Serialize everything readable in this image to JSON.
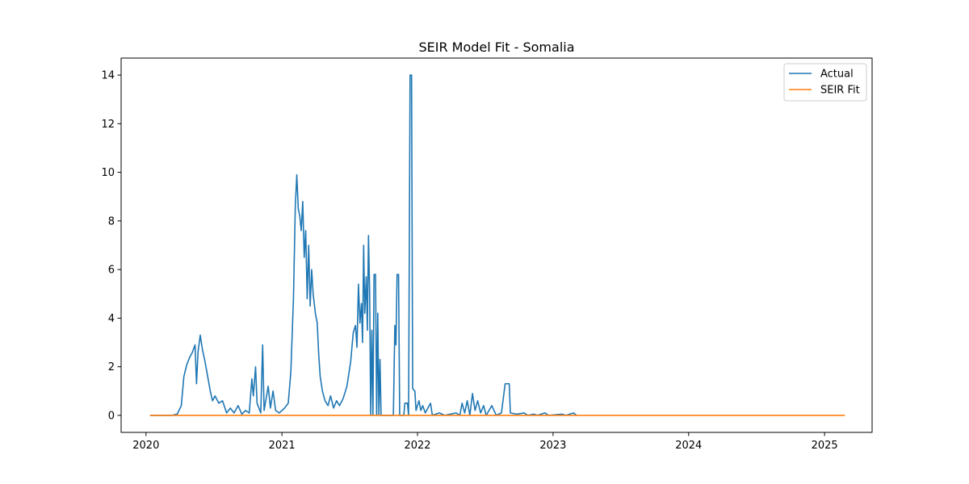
{
  "chart_data": {
    "type": "line",
    "title": "SEIR Model Fit - Somalia",
    "xlabel": "",
    "ylabel": "",
    "x_axis": "date",
    "xlim": [
      "2019-10-26",
      "2025-05-09"
    ],
    "ylim": [
      -0.7,
      14.7
    ],
    "x_ticks": [
      "2020-01-01",
      "2021-01-01",
      "2022-01-01",
      "2023-01-01",
      "2024-01-01",
      "2025-01-01"
    ],
    "x_tick_labels": [
      "2020",
      "2021",
      "2022",
      "2023",
      "2024",
      "2025"
    ],
    "y_ticks": [
      0,
      2,
      4,
      6,
      8,
      10,
      12,
      14
    ],
    "y_tick_labels": [
      "0",
      "2",
      "4",
      "6",
      "8",
      "10",
      "12",
      "14"
    ],
    "grid": false,
    "legend_position": "top-right",
    "series": [
      {
        "name": "Actual",
        "color": "#1f77b4",
        "points": [
          [
            "2020-01-12",
            0
          ],
          [
            "2020-03-10",
            0
          ],
          [
            "2020-03-25",
            0.05
          ],
          [
            "2020-04-05",
            0.4
          ],
          [
            "2020-04-12",
            1.6
          ],
          [
            "2020-04-20",
            2.1
          ],
          [
            "2020-04-28",
            2.4
          ],
          [
            "2020-05-05",
            2.6
          ],
          [
            "2020-05-12",
            2.9
          ],
          [
            "2020-05-16",
            1.3
          ],
          [
            "2020-05-20",
            2.6
          ],
          [
            "2020-05-26",
            3.3
          ],
          [
            "2020-06-01",
            2.7
          ],
          [
            "2020-06-08",
            2.2
          ],
          [
            "2020-06-15",
            1.6
          ],
          [
            "2020-06-22",
            1.0
          ],
          [
            "2020-06-28",
            0.6
          ],
          [
            "2020-07-05",
            0.8
          ],
          [
            "2020-07-15",
            0.5
          ],
          [
            "2020-07-25",
            0.6
          ],
          [
            "2020-08-05",
            0.1
          ],
          [
            "2020-08-15",
            0.3
          ],
          [
            "2020-08-25",
            0.1
          ],
          [
            "2020-09-05",
            0.4
          ],
          [
            "2020-09-15",
            0.05
          ],
          [
            "2020-09-25",
            0.2
          ],
          [
            "2020-10-05",
            0.1
          ],
          [
            "2020-10-12",
            1.5
          ],
          [
            "2020-10-16",
            0.8
          ],
          [
            "2020-10-22",
            2.0
          ],
          [
            "2020-10-26",
            0.5
          ],
          [
            "2020-11-05",
            0.1
          ],
          [
            "2020-11-10",
            2.9
          ],
          [
            "2020-11-14",
            0.2
          ],
          [
            "2020-11-25",
            1.2
          ],
          [
            "2020-12-01",
            0.3
          ],
          [
            "2020-12-08",
            1.0
          ],
          [
            "2020-12-15",
            0.2
          ],
          [
            "2020-12-25",
            0.1
          ],
          [
            "2021-01-08",
            0.3
          ],
          [
            "2021-01-18",
            0.5
          ],
          [
            "2021-01-25",
            1.8
          ],
          [
            "2021-02-01",
            4.8
          ],
          [
            "2021-02-06",
            8.6
          ],
          [
            "2021-02-10",
            9.9
          ],
          [
            "2021-02-14",
            8.5
          ],
          [
            "2021-02-18",
            8.2
          ],
          [
            "2021-02-22",
            7.6
          ],
          [
            "2021-02-26",
            8.8
          ],
          [
            "2021-03-02",
            6.5
          ],
          [
            "2021-03-06",
            7.6
          ],
          [
            "2021-03-10",
            4.8
          ],
          [
            "2021-03-14",
            7.0
          ],
          [
            "2021-03-18",
            4.5
          ],
          [
            "2021-03-22",
            6.0
          ],
          [
            "2021-03-26",
            5.0
          ],
          [
            "2021-04-01",
            4.2
          ],
          [
            "2021-04-06",
            3.8
          ],
          [
            "2021-04-10",
            2.5
          ],
          [
            "2021-04-14",
            1.6
          ],
          [
            "2021-04-20",
            1.0
          ],
          [
            "2021-04-27",
            0.6
          ],
          [
            "2021-05-05",
            0.4
          ],
          [
            "2021-05-12",
            0.8
          ],
          [
            "2021-05-20",
            0.3
          ],
          [
            "2021-05-28",
            0.6
          ],
          [
            "2021-06-05",
            0.4
          ],
          [
            "2021-06-15",
            0.7
          ],
          [
            "2021-06-25",
            1.2
          ],
          [
            "2021-07-05",
            2.2
          ],
          [
            "2021-07-12",
            3.4
          ],
          [
            "2021-07-18",
            3.7
          ],
          [
            "2021-07-22",
            2.8
          ],
          [
            "2021-07-26",
            5.4
          ],
          [
            "2021-07-30",
            3.8
          ],
          [
            "2021-08-03",
            4.6
          ],
          [
            "2021-08-06",
            3.0
          ],
          [
            "2021-08-09",
            7.0
          ],
          [
            "2021-08-12",
            4.2
          ],
          [
            "2021-08-16",
            5.7
          ],
          [
            "2021-08-19",
            3.5
          ],
          [
            "2021-08-22",
            7.4
          ],
          [
            "2021-08-25",
            5.2
          ],
          [
            "2021-08-28",
            0
          ],
          [
            "2021-08-31",
            3.5
          ],
          [
            "2021-09-03",
            0
          ],
          [
            "2021-09-06",
            5.8
          ],
          [
            "2021-09-10",
            5.8
          ],
          [
            "2021-09-13",
            0
          ],
          [
            "2021-09-16",
            4.2
          ],
          [
            "2021-09-19",
            0
          ],
          [
            "2021-09-22",
            2.3
          ],
          [
            "2021-09-25",
            0
          ],
          [
            "2021-10-28",
            0
          ],
          [
            "2021-11-01",
            3.7
          ],
          [
            "2021-11-04",
            2.9
          ],
          [
            "2021-11-07",
            5.8
          ],
          [
            "2021-11-11",
            5.8
          ],
          [
            "2021-11-14",
            0
          ],
          [
            "2021-11-25",
            0
          ],
          [
            "2021-11-28",
            0.5
          ],
          [
            "2021-12-05",
            0.5
          ],
          [
            "2021-12-08",
            0
          ],
          [
            "2021-12-12",
            14.0
          ],
          [
            "2021-12-16",
            14.0
          ],
          [
            "2021-12-19",
            1.1
          ],
          [
            "2021-12-25",
            1.0
          ],
          [
            "2021-12-28",
            0.2
          ],
          [
            "2022-01-05",
            0.6
          ],
          [
            "2022-01-10",
            0.2
          ],
          [
            "2022-01-15",
            0.4
          ],
          [
            "2022-01-22",
            0.1
          ],
          [
            "2022-02-05",
            0.5
          ],
          [
            "2022-02-10",
            0
          ],
          [
            "2022-03-01",
            0.1
          ],
          [
            "2022-03-15",
            0
          ],
          [
            "2022-04-15",
            0.1
          ],
          [
            "2022-04-25",
            0
          ],
          [
            "2022-05-01",
            0.5
          ],
          [
            "2022-05-08",
            0.1
          ],
          [
            "2022-05-15",
            0.6
          ],
          [
            "2022-05-22",
            0
          ],
          [
            "2022-05-29",
            0.9
          ],
          [
            "2022-06-05",
            0.2
          ],
          [
            "2022-06-12",
            0.6
          ],
          [
            "2022-06-20",
            0.1
          ],
          [
            "2022-06-28",
            0.4
          ],
          [
            "2022-07-05",
            0
          ],
          [
            "2022-07-20",
            0.4
          ],
          [
            "2022-08-01",
            0
          ],
          [
            "2022-08-15",
            0.1
          ],
          [
            "2022-08-25",
            1.3
          ],
          [
            "2022-09-05",
            1.3
          ],
          [
            "2022-09-08",
            0.1
          ],
          [
            "2022-09-25",
            0.05
          ],
          [
            "2022-10-15",
            0.1
          ],
          [
            "2022-10-25",
            0
          ],
          [
            "2022-11-10",
            0.05
          ],
          [
            "2022-11-20",
            0
          ],
          [
            "2022-12-10",
            0.1
          ],
          [
            "2022-12-20",
            0
          ],
          [
            "2023-01-25",
            0.05
          ],
          [
            "2023-02-05",
            0
          ],
          [
            "2023-02-25",
            0.1
          ],
          [
            "2023-03-05",
            0
          ]
        ]
      },
      {
        "name": "SEIR Fit",
        "color": "#ff7f0e",
        "points": [
          [
            "2020-01-12",
            0
          ],
          [
            "2025-02-25",
            0
          ]
        ]
      }
    ]
  }
}
